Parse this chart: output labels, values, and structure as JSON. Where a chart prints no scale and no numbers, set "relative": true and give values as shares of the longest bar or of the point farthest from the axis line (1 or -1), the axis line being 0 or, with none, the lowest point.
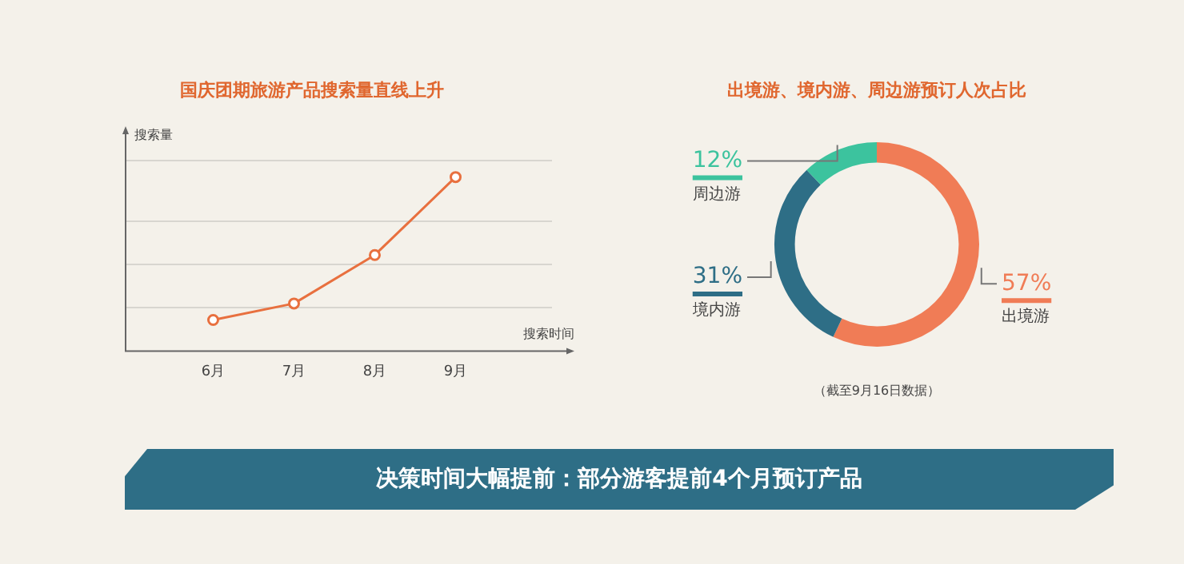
{
  "chart_data": [
    {
      "type": "line",
      "title": "国庆团期旅游产品搜索量直线上升",
      "ylabel": "搜索量",
      "xlabel": "搜索时间",
      "relative": true,
      "grid": "y",
      "marker": "circle",
      "legend": false,
      "categories": [
        "6月",
        "7月",
        "8月",
        "9月"
      ],
      "series": [
        {
          "color": "#e8703f",
          "values": [
            0.175,
            0.27,
            0.55,
            1
          ]
        }
      ]
    },
    {
      "type": "donut",
      "title": "出境游、境内游、周边游预订人次占比",
      "categories": [
        "出境游",
        "境内游",
        "周边游"
      ],
      "values": [
        57,
        31,
        12
      ],
      "colors": [
        "#f07c56",
        "#2e6e86",
        "#3cc39e"
      ],
      "value_labels": [
        "57%",
        "31%",
        "12%"
      ],
      "legend": "left",
      "annotations": [
        "（截至9月16日数据）"
      ]
    },
    {
      "type": "other",
      "title": "决策时间大幅提前：部分游客提前4个月预订产品"
    }
  ]
}
